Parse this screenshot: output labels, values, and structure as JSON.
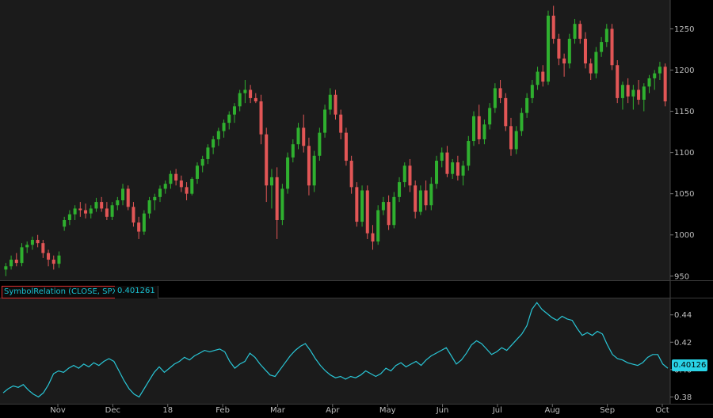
{
  "chart_data": [
    {
      "type": "candlestick",
      "ylim": [
        945,
        1285
      ],
      "yticks": [
        950,
        1000,
        1050,
        1100,
        1150,
        1200,
        1250
      ],
      "grid": false,
      "colors": {
        "up": "#2fb02f",
        "down": "#e25656",
        "background": "#1b1b1b"
      },
      "series": [
        {
          "values": [
            [
              958,
              966,
              950,
              962
            ],
            [
              962,
              975,
              958,
              970
            ],
            [
              970,
              978,
              962,
              966
            ],
            [
              966,
              990,
              962,
              985
            ],
            [
              985,
              992,
              978,
              988
            ],
            [
              988,
              998,
              982,
              994
            ],
            [
              994,
              1000,
              985,
              990
            ],
            [
              990,
              994,
              972,
              978
            ],
            [
              978,
              982,
              962,
              970
            ],
            [
              970,
              975,
              958,
              965
            ],
            [
              965,
              980,
              960,
              975
            ],
            [
              1010,
              1022,
              1005,
              1018
            ],
            [
              1018,
              1030,
              1012,
              1025
            ],
            [
              1025,
              1036,
              1018,
              1032
            ],
            [
              1032,
              1040,
              1022,
              1030
            ],
            [
              1030,
              1038,
              1020,
              1026
            ],
            [
              1026,
              1036,
              1020,
              1032
            ],
            [
              1032,
              1045,
              1028,
              1040
            ],
            [
              1040,
              1046,
              1028,
              1032
            ],
            [
              1032,
              1040,
              1018,
              1022
            ],
            [
              1022,
              1040,
              1018,
              1036
            ],
            [
              1036,
              1046,
              1030,
              1042
            ],
            [
              1042,
              1062,
              1036,
              1056
            ],
            [
              1056,
              1060,
              1030,
              1034
            ],
            [
              1034,
              1040,
              1010,
              1015
            ],
            [
              1015,
              1022,
              995,
              1004
            ],
            [
              1004,
              1030,
              1000,
              1026
            ],
            [
              1026,
              1046,
              1020,
              1042
            ],
            [
              1042,
              1050,
              1030,
              1046
            ],
            [
              1046,
              1060,
              1040,
              1056
            ],
            [
              1056,
              1066,
              1050,
              1062
            ],
            [
              1062,
              1078,
              1056,
              1074
            ],
            [
              1074,
              1080,
              1060,
              1066
            ],
            [
              1066,
              1072,
              1052,
              1058
            ],
            [
              1058,
              1064,
              1042,
              1050
            ],
            [
              1050,
              1070,
              1048,
              1068
            ],
            [
              1068,
              1088,
              1062,
              1084
            ],
            [
              1084,
              1096,
              1076,
              1092
            ],
            [
              1092,
              1110,
              1086,
              1106
            ],
            [
              1106,
              1120,
              1098,
              1116
            ],
            [
              1116,
              1130,
              1108,
              1126
            ],
            [
              1126,
              1140,
              1118,
              1136
            ],
            [
              1136,
              1150,
              1128,
              1146
            ],
            [
              1146,
              1160,
              1136,
              1156
            ],
            [
              1156,
              1176,
              1150,
              1172
            ],
            [
              1172,
              1188,
              1160,
              1176
            ],
            [
              1176,
              1182,
              1160,
              1166
            ],
            [
              1166,
              1172,
              1160,
              1162
            ],
            [
              1162,
              1170,
              1110,
              1122
            ],
            [
              1122,
              1130,
              1040,
              1060
            ],
            [
              1060,
              1080,
              1032,
              1070
            ],
            [
              1070,
              1082,
              995,
              1018
            ],
            [
              1018,
              1062,
              1012,
              1056
            ],
            [
              1056,
              1100,
              1050,
              1094
            ],
            [
              1094,
              1116,
              1088,
              1110
            ],
            [
              1110,
              1136,
              1104,
              1130
            ],
            [
              1130,
              1146,
              1100,
              1108
            ],
            [
              1108,
              1118,
              1048,
              1060
            ],
            [
              1060,
              1102,
              1052,
              1096
            ],
            [
              1096,
              1130,
              1090,
              1124
            ],
            [
              1124,
              1158,
              1118,
              1152
            ],
            [
              1152,
              1178,
              1146,
              1170
            ],
            [
              1170,
              1176,
              1140,
              1146
            ],
            [
              1146,
              1152,
              1116,
              1124
            ],
            [
              1124,
              1130,
              1084,
              1090
            ],
            [
              1090,
              1096,
              1050,
              1058
            ],
            [
              1058,
              1064,
              1010,
              1016
            ],
            [
              1016,
              1060,
              1010,
              1054
            ],
            [
              1054,
              1060,
              995,
              1002
            ],
            [
              1002,
              1012,
              982,
              992
            ],
            [
              992,
              1036,
              988,
              1030
            ],
            [
              1030,
              1046,
              1024,
              1040
            ],
            [
              1040,
              1048,
              1006,
              1012
            ],
            [
              1012,
              1052,
              1008,
              1046
            ],
            [
              1046,
              1070,
              1040,
              1064
            ],
            [
              1064,
              1088,
              1058,
              1084
            ],
            [
              1084,
              1092,
              1052,
              1060
            ],
            [
              1060,
              1066,
              1020,
              1028
            ],
            [
              1028,
              1060,
              1024,
              1054
            ],
            [
              1054,
              1066,
              1030,
              1036
            ],
            [
              1036,
              1070,
              1030,
              1062
            ],
            [
              1062,
              1096,
              1056,
              1090
            ],
            [
              1090,
              1106,
              1082,
              1100
            ],
            [
              1100,
              1108,
              1070,
              1074
            ],
            [
              1074,
              1092,
              1068,
              1088
            ],
            [
              1088,
              1096,
              1066,
              1072
            ],
            [
              1072,
              1090,
              1060,
              1084
            ],
            [
              1084,
              1120,
              1078,
              1114
            ],
            [
              1114,
              1150,
              1108,
              1144
            ],
            [
              1144,
              1158,
              1110,
              1116
            ],
            [
              1116,
              1140,
              1110,
              1134
            ],
            [
              1134,
              1160,
              1128,
              1154
            ],
            [
              1154,
              1184,
              1148,
              1178
            ],
            [
              1178,
              1188,
              1160,
              1166
            ],
            [
              1166,
              1172,
              1126,
              1132
            ],
            [
              1132,
              1142,
              1096,
              1104
            ],
            [
              1104,
              1132,
              1098,
              1126
            ],
            [
              1126,
              1154,
              1120,
              1148
            ],
            [
              1148,
              1172,
              1142,
              1166
            ],
            [
              1166,
              1188,
              1160,
              1182
            ],
            [
              1182,
              1204,
              1176,
              1198
            ],
            [
              1198,
              1206,
              1180,
              1186
            ],
            [
              1186,
              1272,
              1182,
              1266
            ],
            [
              1266,
              1278,
              1232,
              1238
            ],
            [
              1238,
              1244,
              1206,
              1214
            ],
            [
              1214,
              1220,
              1192,
              1208
            ],
            [
              1208,
              1244,
              1202,
              1238
            ],
            [
              1238,
              1262,
              1232,
              1256
            ],
            [
              1256,
              1260,
              1232,
              1238
            ],
            [
              1238,
              1246,
              1202,
              1208
            ],
            [
              1208,
              1214,
              1188,
              1196
            ],
            [
              1196,
              1228,
              1190,
              1222
            ],
            [
              1222,
              1240,
              1216,
              1234
            ],
            [
              1234,
              1256,
              1228,
              1250
            ],
            [
              1250,
              1256,
              1200,
              1206
            ],
            [
              1206,
              1212,
              1160,
              1166
            ],
            [
              1166,
              1186,
              1152,
              1182
            ],
            [
              1182,
              1190,
              1160,
              1168
            ],
            [
              1168,
              1182,
              1152,
              1176
            ],
            [
              1176,
              1188,
              1158,
              1164
            ],
            [
              1164,
              1184,
              1150,
              1180
            ],
            [
              1180,
              1194,
              1172,
              1190
            ],
            [
              1190,
              1200,
              1176,
              1196
            ],
            [
              1196,
              1210,
              1188,
              1204
            ],
            [
              1204,
              1208,
              1156,
              1162
            ]
          ]
        }
      ]
    },
    {
      "type": "line",
      "title": "SymbolRelation (CLOSE, SPX)",
      "last_value": "0.401261",
      "last_tag": "0.40126",
      "ylim": [
        0.375,
        0.452
      ],
      "yticks": [
        "0.38",
        "0.40",
        "0.42",
        "0.44"
      ],
      "color": "#29c6d6",
      "series": [
        {
          "values": [
            0.383,
            0.386,
            0.388,
            0.387,
            0.389,
            0.385,
            0.382,
            0.38,
            0.383,
            0.389,
            0.397,
            0.399,
            0.398,
            0.401,
            0.403,
            0.401,
            0.404,
            0.402,
            0.405,
            0.403,
            0.406,
            0.408,
            0.406,
            0.399,
            0.392,
            0.386,
            0.382,
            0.38,
            0.386,
            0.392,
            0.398,
            0.402,
            0.398,
            0.401,
            0.404,
            0.406,
            0.409,
            0.407,
            0.41,
            0.412,
            0.414,
            0.413,
            0.414,
            0.415,
            0.413,
            0.406,
            0.401,
            0.404,
            0.406,
            0.412,
            0.409,
            0.404,
            0.4,
            0.396,
            0.395,
            0.4,
            0.405,
            0.41,
            0.414,
            0.417,
            0.419,
            0.414,
            0.408,
            0.403,
            0.399,
            0.396,
            0.394,
            0.395,
            0.393,
            0.395,
            0.394,
            0.396,
            0.399,
            0.397,
            0.395,
            0.397,
            0.401,
            0.399,
            0.403,
            0.405,
            0.402,
            0.404,
            0.406,
            0.403,
            0.407,
            0.41,
            0.412,
            0.414,
            0.416,
            0.41,
            0.404,
            0.407,
            0.412,
            0.418,
            0.421,
            0.419,
            0.415,
            0.411,
            0.413,
            0.416,
            0.414,
            0.418,
            0.422,
            0.426,
            0.432,
            0.444,
            0.449,
            0.444,
            0.441,
            0.438,
            0.436,
            0.439,
            0.437,
            0.436,
            0.43,
            0.425,
            0.427,
            0.425,
            0.428,
            0.426,
            0.418,
            0.411,
            0.408,
            0.407,
            0.405,
            0.404,
            0.403,
            0.405,
            0.409,
            0.411,
            0.411,
            0.404,
            0.401
          ]
        }
      ],
      "xticks": [
        "Nov",
        "Dec",
        "18",
        "Feb",
        "Mar",
        "Apr",
        "May",
        "Jun",
        "Jul",
        "Aug",
        "Sep",
        "Oct"
      ]
    }
  ]
}
